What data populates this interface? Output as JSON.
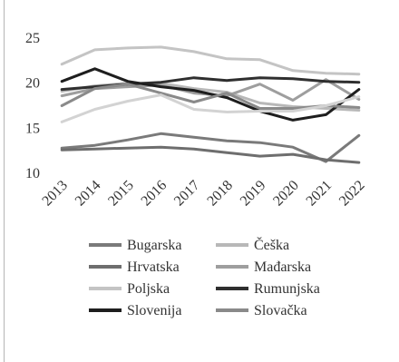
{
  "chart_data": {
    "type": "line",
    "title": "",
    "xlabel": "",
    "ylabel": "",
    "x": [
      "2013",
      "2014",
      "2015",
      "2016",
      "2017",
      "2018",
      "2019",
      "2020",
      "2021",
      "2022"
    ],
    "ylim": [
      10,
      25
    ],
    "yticks": [
      10,
      15,
      20,
      25
    ],
    "grid": "none",
    "legend_position": "bottom",
    "series": [
      {
        "name": "Bugarska",
        "color": "#7a7a7a",
        "values": [
          12.8,
          13.1,
          13.7,
          14.4,
          14.0,
          13.6,
          13.4,
          12.9,
          11.3,
          14.2
        ]
      },
      {
        "name": "Češka",
        "color": "#b8b8b8",
        "values": [
          19.1,
          19.7,
          20.0,
          20.0,
          19.4,
          19.0,
          17.8,
          17.4,
          17.2,
          17.0
        ]
      },
      {
        "name": "Hrvatska",
        "color": "#6e6e6e",
        "values": [
          12.6,
          12.7,
          12.8,
          12.9,
          12.7,
          12.3,
          11.9,
          12.1,
          11.5,
          11.2
        ]
      },
      {
        "name": "Mađarska",
        "color": "#9e9e9e",
        "values": [
          18.6,
          19.4,
          19.6,
          19.8,
          18.9,
          18.6,
          19.9,
          18.1,
          20.4,
          18.2
        ]
      },
      {
        "name": "Poljska",
        "color": "#c4c4c4",
        "values": [
          22.1,
          23.7,
          23.9,
          24.0,
          23.5,
          22.7,
          22.6,
          21.4,
          21.1,
          21.0
        ]
      },
      {
        "name": "Rumunjska",
        "color": "#2f2f2f",
        "values": [
          19.3,
          19.6,
          19.9,
          20.1,
          20.6,
          20.3,
          20.6,
          20.5,
          20.2,
          20.1
        ]
      },
      {
        "name": "Slovenija",
        "color": "#1e1e1e",
        "values": [
          20.2,
          21.6,
          20.2,
          19.6,
          19.2,
          18.4,
          16.9,
          15.9,
          16.5,
          19.3
        ]
      },
      {
        "name": "Slovačka",
        "color": "#8a8a8a",
        "values": [
          17.5,
          19.4,
          19.9,
          18.9,
          17.9,
          18.9,
          17.2,
          17.2,
          17.5,
          17.3
        ]
      },
      {
        "name": "",
        "color": "#d3d3d3",
        "values": [
          15.7,
          17.1,
          18.0,
          18.7,
          17.1,
          16.8,
          16.9,
          16.9,
          17.5,
          18.5
        ]
      }
    ]
  }
}
